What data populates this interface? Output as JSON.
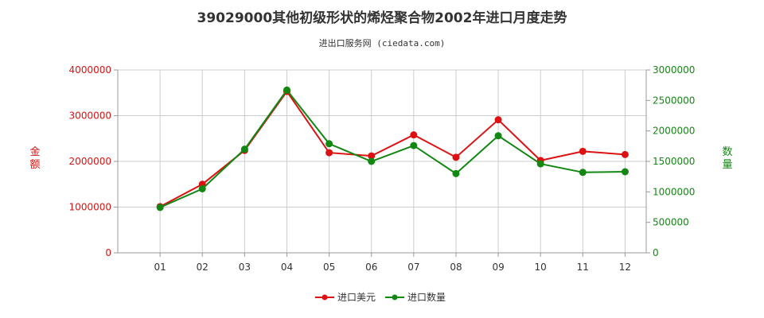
{
  "chart_data": {
    "type": "line",
    "title": "39029000其他初级形状的烯烃聚合物2002年进口月度走势",
    "subtitle": "进出口服务网 (ciedata.com)",
    "categories": [
      "01",
      "02",
      "03",
      "04",
      "05",
      "06",
      "07",
      "08",
      "09",
      "10",
      "11",
      "12"
    ],
    "y_left": {
      "label": "金额",
      "ticks": [
        "0",
        "1000000",
        "2000000",
        "3000000",
        "4000000"
      ],
      "range": [
        0,
        4000000
      ],
      "color": "#dd1111"
    },
    "y_right": {
      "label": "数量",
      "ticks": [
        "0",
        "500000",
        "1000000",
        "1500000",
        "2000000",
        "2500000",
        "3000000"
      ],
      "range": [
        0,
        3000000
      ],
      "color": "#118811"
    },
    "series": [
      {
        "name": "进口美元",
        "axis": "left",
        "color": "#dd1111",
        "values": [
          1010000,
          1500000,
          2240000,
          3530000,
          2190000,
          2120000,
          2580000,
          2090000,
          2910000,
          2020000,
          2220000,
          2150000
        ]
      },
      {
        "name": "进口数量",
        "axis": "right",
        "color": "#118811",
        "values": [
          745000,
          1050000,
          1700000,
          2670000,
          1790000,
          1500000,
          1760000,
          1300000,
          1920000,
          1460000,
          1320000,
          1330000
        ]
      }
    ],
    "grid": true,
    "legend_position": "bottom-center"
  }
}
